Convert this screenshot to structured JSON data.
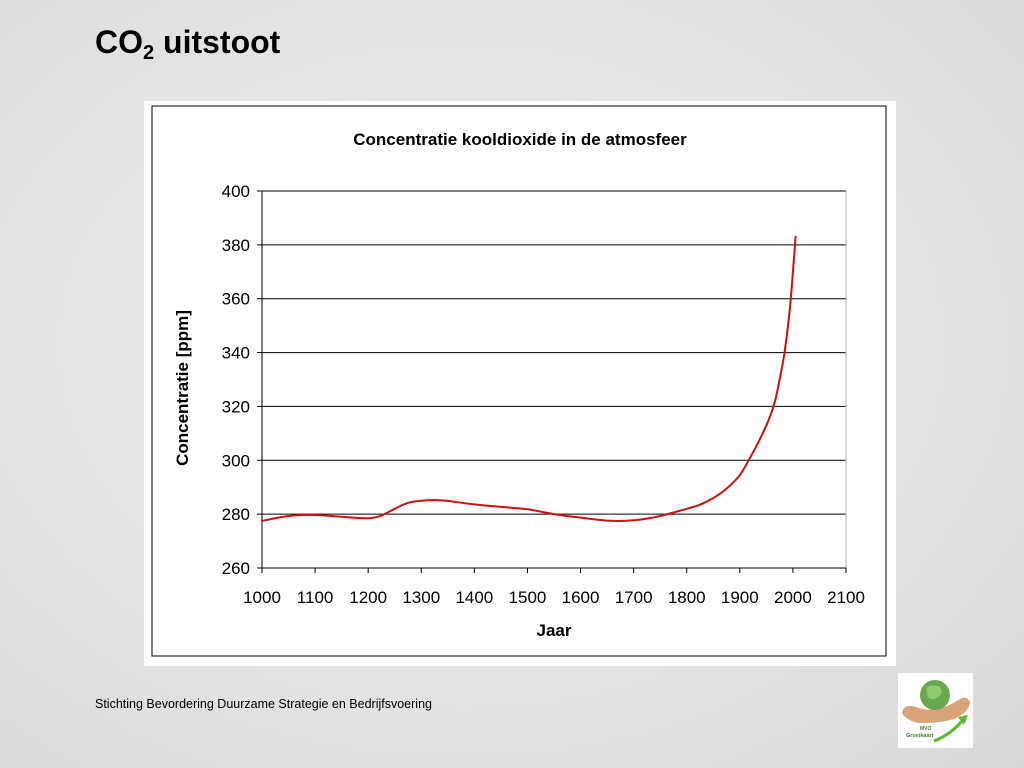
{
  "slide": {
    "title_main": "CO",
    "title_sub": "2",
    "title_rest": " uitstoot",
    "footer": "Stichting Bevordering Duurzame Strategie en Bedrijfsvoering"
  },
  "logo": {
    "text_top": "MVO",
    "text_bottom": "Groeikaart",
    "colors": {
      "globe": "#6aa84f",
      "hands": "#d9a37a",
      "arrow": "#5cb82e"
    }
  },
  "chart_data": {
    "type": "line",
    "title": "Concentratie kooldioxide in de atmosfeer",
    "xlabel": "Jaar",
    "ylabel": "Concentratie  [ppm]",
    "xlim": [
      1000,
      2100
    ],
    "ylim": [
      260,
      400
    ],
    "xticks": [
      1000,
      1100,
      1200,
      1300,
      1400,
      1500,
      1600,
      1700,
      1800,
      1900,
      2000,
      2100
    ],
    "yticks": [
      260,
      280,
      300,
      320,
      340,
      360,
      380,
      400
    ],
    "grid": "horizontal",
    "legend": "none",
    "line_color": "#cc1111",
    "series": [
      {
        "x": [
          1000,
          1050,
          1100,
          1150,
          1200,
          1225,
          1250,
          1275,
          1300,
          1325,
          1350,
          1400,
          1450,
          1500,
          1550,
          1600,
          1650,
          1700,
          1750,
          1800,
          1825,
          1850,
          1875,
          1900,
          1925,
          1950,
          1965,
          1975,
          1985,
          1995,
          2005
        ],
        "y": [
          277.5,
          279.3,
          279.7,
          279.0,
          278.5,
          279.5,
          282.0,
          284.2,
          285.0,
          285.2,
          284.9,
          283.6,
          282.7,
          281.8,
          280.0,
          278.7,
          277.6,
          277.7,
          279.3,
          282.0,
          283.5,
          286.0,
          289.5,
          294.5,
          303.0,
          313.0,
          321.0,
          330.0,
          341.0,
          358.0,
          383.0
        ]
      }
    ]
  }
}
